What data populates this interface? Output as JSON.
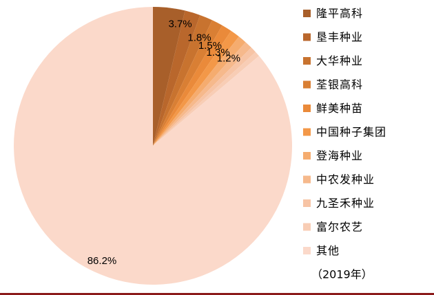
{
  "chart_data": {
    "type": "pie",
    "title": "",
    "categories": [
      "隆平高科",
      "垦丰种业",
      "大华种业",
      "荃银高科",
      "鲜美种苗",
      "中国种子集团",
      "登海种业",
      "中农发种业",
      "九圣禾种业",
      "富尔农艺",
      "其他"
    ],
    "values": [
      3.7,
      1.8,
      1.5,
      1.3,
      1.2,
      1.1,
      1.0,
      0.9,
      0.7,
      0.6,
      86.2
    ],
    "labels": [
      "3.7%",
      "1.8%",
      "1.5%",
      "1.3%",
      "1.2%",
      "",
      "",
      "",
      "",
      "",
      "86.2%"
    ],
    "colors": [
      "#a85f2a",
      "#b9672c",
      "#c8732f",
      "#d97f34",
      "#ea8a3a",
      "#f39848",
      "#f5ac6f",
      "#f6b98c",
      "#f7c4a5",
      "#f8cdb5",
      "#fbd9ca"
    ],
    "legend_note": "（2019年）",
    "legend_position": "right"
  }
}
